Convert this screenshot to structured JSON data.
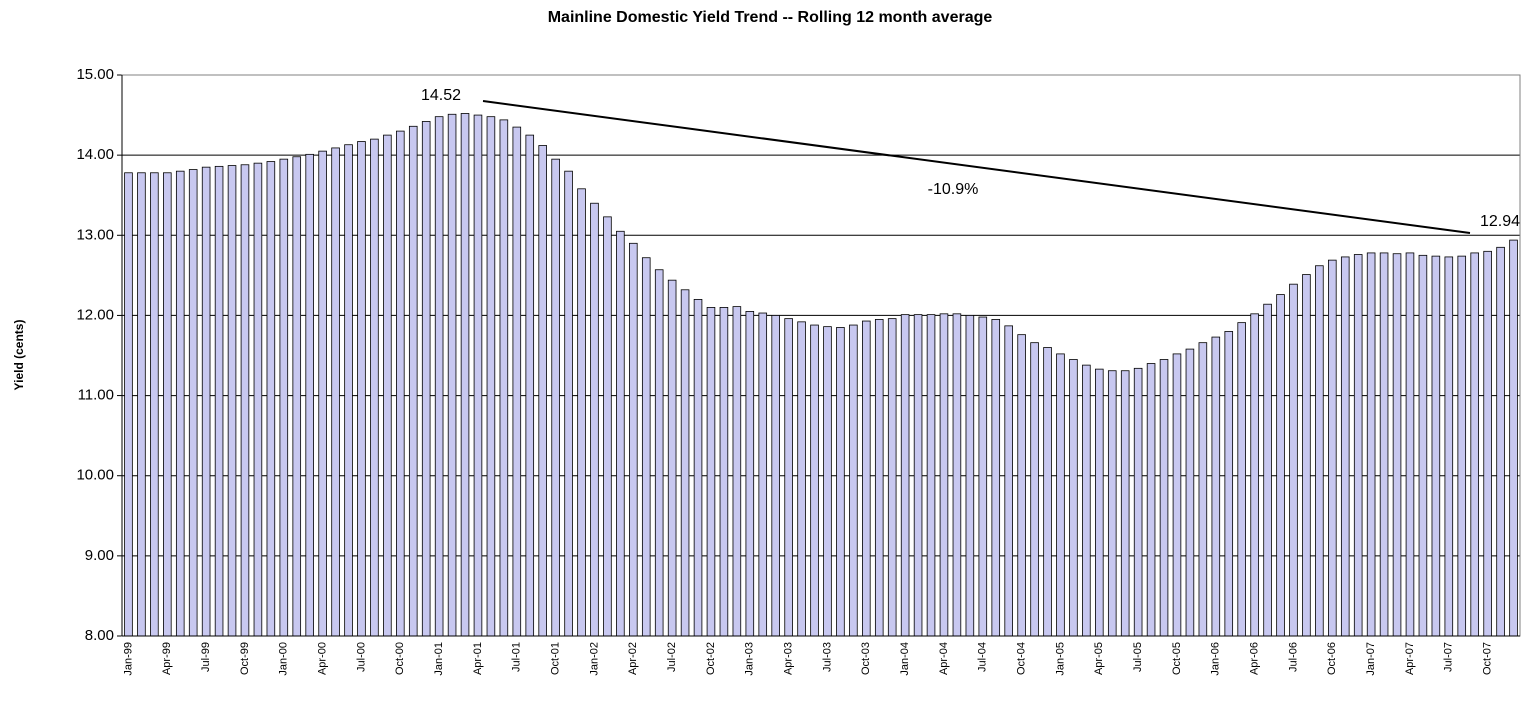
{
  "chart_data": {
    "type": "bar",
    "title": "Mainline Domestic Yield Trend -- Rolling 12 month average",
    "y_label": "Yield (cents)",
    "annotations": [
      "14.52",
      "-10.9%",
      "12.94"
    ],
    "categories": [
      "Jan-99",
      null,
      null,
      "Apr-99",
      null,
      null,
      "Jul-99",
      null,
      null,
      "Oct-99",
      null,
      null,
      "Jan-00",
      null,
      null,
      "Apr-00",
      null,
      null,
      "Jul-00",
      null,
      null,
      "Oct-00",
      null,
      null,
      "Jan-01",
      null,
      null,
      "Apr-01",
      null,
      null,
      "Jul-01",
      null,
      null,
      "Oct-01",
      null,
      null,
      "Jan-02",
      null,
      null,
      "Apr-02",
      null,
      null,
      "Jul-02",
      null,
      null,
      "Oct-02",
      null,
      null,
      "Jan-03",
      null,
      null,
      "Apr-03",
      null,
      null,
      "Jul-03",
      null,
      null,
      "Oct-03",
      null,
      null,
      "Jan-04",
      null,
      null,
      "Apr-04",
      null,
      null,
      "Jul-04",
      null,
      null,
      "Oct-04",
      null,
      null,
      "Jan-05",
      null,
      null,
      "Apr-05",
      null,
      null,
      "Jul-05",
      null,
      null,
      "Oct-05",
      null,
      null,
      "Jan-06",
      null,
      null,
      "Apr-06",
      null,
      null,
      "Jul-06",
      null,
      null,
      "Oct-06",
      null,
      null,
      "Jan-07",
      null,
      null,
      "Apr-07",
      null,
      null,
      "Jul-07",
      null,
      null,
      "Oct-07",
      null,
      null
    ],
    "values": [
      13.78,
      13.78,
      13.78,
      13.78,
      13.8,
      13.82,
      13.85,
      13.86,
      13.87,
      13.88,
      13.9,
      13.92,
      13.95,
      13.98,
      14.01,
      14.05,
      14.09,
      14.13,
      14.17,
      14.2,
      14.25,
      14.3,
      14.36,
      14.42,
      14.48,
      14.51,
      14.52,
      14.5,
      14.48,
      14.44,
      14.35,
      14.25,
      14.12,
      13.95,
      13.8,
      13.58,
      13.4,
      13.23,
      13.05,
      12.9,
      12.72,
      12.57,
      12.44,
      12.32,
      12.2,
      12.1,
      12.1,
      12.11,
      12.05,
      12.03,
      12.0,
      11.96,
      11.92,
      11.88,
      11.86,
      11.85,
      11.88,
      11.93,
      11.95,
      11.96,
      12.01,
      12.01,
      12.01,
      12.02,
      12.02,
      12.0,
      11.98,
      11.95,
      11.87,
      11.76,
      11.66,
      11.6,
      11.52,
      11.45,
      11.38,
      11.33,
      11.31,
      11.31,
      11.34,
      11.4,
      11.45,
      11.52,
      11.58,
      11.66,
      11.73,
      11.8,
      11.91,
      12.02,
      12.14,
      12.26,
      12.39,
      12.51,
      12.62,
      12.69,
      12.73,
      12.76,
      12.78,
      12.78,
      12.77,
      12.78,
      12.75,
      12.74,
      12.73,
      12.74,
      12.78,
      12.8,
      12.85,
      12.94
    ],
    "color": "#c8c8f0",
    "ylim": [
      8,
      15
    ],
    "yticks": [
      {
        "value": 8,
        "label": "8.00"
      },
      {
        "value": 9,
        "label": "9.00"
      },
      {
        "value": 10,
        "label": "10.00"
      },
      {
        "value": 11,
        "label": "11.00"
      },
      {
        "value": 12,
        "label": "12.00"
      },
      {
        "value": 13,
        "label": "13.00"
      },
      {
        "value": 14,
        "label": "14.00"
      },
      {
        "value": 15,
        "label": "15.00"
      }
    ],
    "grid": true
  }
}
